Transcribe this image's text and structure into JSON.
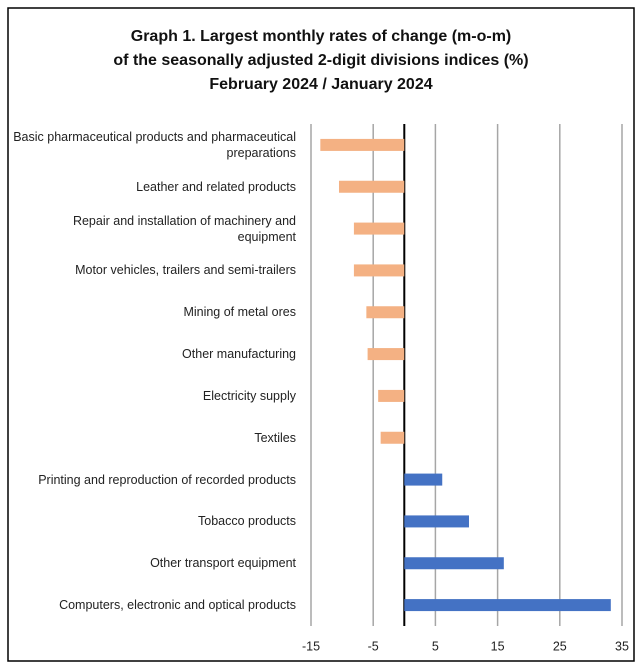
{
  "chart_data": {
    "type": "barh",
    "title": [
      "Graph 1. Largest monthly rates of change (m-o-m)",
      "of the seasonally adjusted 2-digit divisions indices (%)",
      "February 2024 / January 2024"
    ],
    "categories": [
      "Basic pharmaceutical products and pharmaceutical preparations",
      "Leather and related products",
      "Repair and installation of machinery and equipment",
      "Motor vehicles, trailers and semi-trailers",
      "Mining of metal ores",
      "Other manufacturing",
      "Electricity supply",
      "Textiles",
      "Printing and reproduction of recorded products",
      "Tobacco products",
      "Other transport equipment",
      "Computers, electronic and optical products"
    ],
    "values": [
      -13.5,
      -10.5,
      -8.1,
      -8.1,
      -6.1,
      -5.9,
      -4.2,
      -3.8,
      6.1,
      10.4,
      16.0,
      33.2
    ],
    "color": "#4472c4",
    "negative_color": "#f4b183",
    "xlim": [
      -15,
      35
    ],
    "xticks": [
      -15,
      -5,
      5,
      15,
      25,
      35
    ],
    "grid": true
  }
}
